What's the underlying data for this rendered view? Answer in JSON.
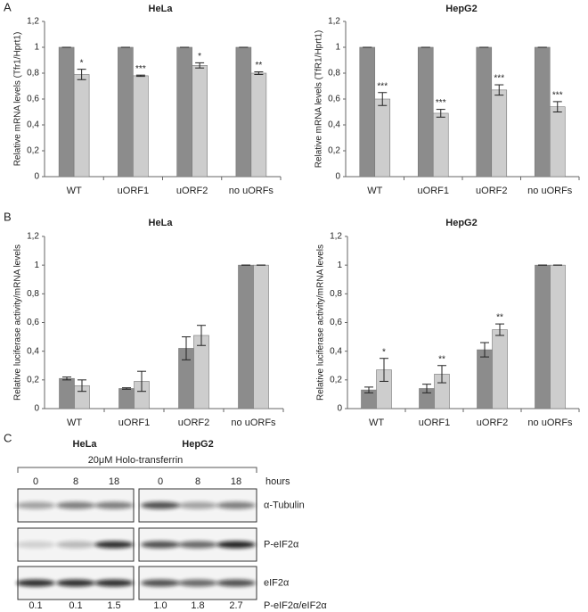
{
  "panel_labels": [
    "A",
    "B",
    "C"
  ],
  "chart_data": [
    {
      "type": "bar",
      "title": "HeLa",
      "ylabel": "Relative mRNA levels (Tfr1/Hprt1)",
      "categories": [
        "WT",
        "uORF1",
        "uORF2",
        "no uORFs"
      ],
      "series": [
        {
          "color": "#8c8c8c",
          "values": [
            1,
            1,
            1,
            1
          ],
          "errors": [
            0,
            0,
            0,
            0
          ]
        },
        {
          "color": "#cdcdcd",
          "values": [
            0.79,
            0.78,
            0.86,
            0.8
          ],
          "errors": [
            0.04,
            0.005,
            0.02,
            0.01
          ],
          "annotations": [
            "*",
            "***",
            "*",
            "**"
          ]
        }
      ],
      "ylim": [
        0,
        1.2
      ],
      "yticks": [
        0,
        {
          "value": 0.2,
          "label": "0,2"
        },
        {
          "value": 0.4,
          "label": "0,4"
        },
        {
          "value": 0.6,
          "label": "0,6"
        },
        {
          "value": 0.8,
          "label": "0,8"
        },
        1,
        {
          "value": 1.2,
          "label": "1,2"
        }
      ]
    },
    {
      "type": "bar",
      "title": "HepG2",
      "ylabel": "Relative mRNA levels (TfR1/Hprt1)",
      "categories": [
        "WT",
        "uORF1",
        "uORF2",
        "no uORFs"
      ],
      "series": [
        {
          "color": "#8c8c8c",
          "values": [
            1,
            1,
            1,
            1
          ],
          "errors": [
            0,
            0,
            0,
            0
          ]
        },
        {
          "color": "#cdcdcd",
          "values": [
            0.6,
            0.49,
            0.67,
            0.54
          ],
          "errors": [
            0.05,
            0.03,
            0.04,
            0.04
          ],
          "annotations": [
            "***",
            "***",
            "***",
            "***"
          ]
        }
      ],
      "ylim": [
        0,
        1.2
      ],
      "yticks": [
        0,
        {
          "value": 0.2,
          "label": "0,2"
        },
        {
          "value": 0.4,
          "label": "0,4"
        },
        {
          "value": 0.6,
          "label": "0,6"
        },
        {
          "value": 0.8,
          "label": "0,8"
        },
        1,
        {
          "value": 1.2,
          "label": "1,2"
        }
      ]
    },
    {
      "type": "bar",
      "title": "HeLa",
      "ylabel": "Relative luciferase activity/mRNA levels",
      "categories": [
        "WT",
        "uORF1",
        "uORF2",
        "no uORFs"
      ],
      "series": [
        {
          "color": "#8c8c8c",
          "values": [
            0.21,
            0.14,
            0.42,
            1
          ],
          "errors": [
            0.01,
            0.005,
            0.08,
            0
          ]
        },
        {
          "color": "#cdcdcd",
          "values": [
            0.16,
            0.19,
            0.51,
            1
          ],
          "errors": [
            0.04,
            0.07,
            0.07,
            0
          ]
        }
      ],
      "ylim": [
        0,
        1.2
      ],
      "yticks": [
        0,
        {
          "value": 0.2,
          "label": "0,2"
        },
        {
          "value": 0.4,
          "label": "0,4"
        },
        {
          "value": 0.6,
          "label": "0,6"
        },
        {
          "value": 0.8,
          "label": "0,8"
        },
        1,
        {
          "value": 1.2,
          "label": "1,2"
        }
      ]
    },
    {
      "type": "bar",
      "title": "HepG2",
      "ylabel": "Relative luciferase activity/mRNA levels",
      "categories": [
        "WT",
        "uORF1",
        "uORF2",
        "no uORFs"
      ],
      "series": [
        {
          "color": "#8c8c8c",
          "values": [
            0.13,
            0.14,
            0.41,
            1
          ],
          "errors": [
            0.02,
            0.03,
            0.05,
            0
          ]
        },
        {
          "color": "#cdcdcd",
          "values": [
            0.27,
            0.24,
            0.55,
            1
          ],
          "errors": [
            0.08,
            0.06,
            0.04,
            0
          ],
          "annotations": [
            "*",
            "**",
            "**",
            null
          ]
        }
      ],
      "ylim": [
        0,
        1.2
      ],
      "yticks": [
        0,
        {
          "value": 0.2,
          "label": "0,2"
        },
        {
          "value": 0.4,
          "label": "0,4"
        },
        {
          "value": 0.6,
          "label": "0,6"
        },
        {
          "value": 0.8,
          "label": "0,8"
        },
        1,
        {
          "value": 1.2,
          "label": "1,2"
        }
      ]
    }
  ],
  "blot": {
    "cell_lines": [
      "HeLa",
      "HepG2"
    ],
    "treatment": "20μM Holo-transferrin",
    "lanes": [
      "0",
      "8",
      "18",
      "0",
      "8",
      "18"
    ],
    "lane_unit": "hours",
    "rows": [
      "α-Tubulin",
      "P-eIF2α",
      "eIF2α"
    ],
    "ratios": [
      "0.1",
      "0.1",
      "1.5",
      "1.0",
      "1.8",
      "2.7"
    ],
    "ratio_label": "P-eIF2α/eIF2α"
  }
}
